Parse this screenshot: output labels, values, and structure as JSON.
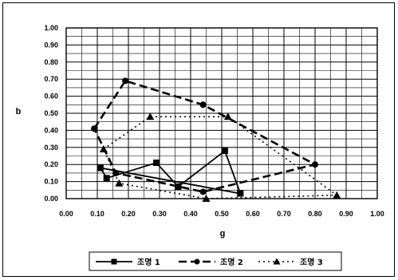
{
  "chart_data": {
    "type": "scatter",
    "title": "",
    "xlabel": "g",
    "ylabel": "b",
    "xlim": [
      0,
      1
    ],
    "ylim": [
      0,
      1
    ],
    "x_ticks": [
      "0.00",
      "0.10",
      "0.20",
      "0.30",
      "0.40",
      "0.50",
      "0.60",
      "0.70",
      "0.80",
      "0.90",
      "1.00"
    ],
    "y_ticks": [
      "0.00",
      "0.10",
      "0.20",
      "0.30",
      "0.40",
      "0.50",
      "0.60",
      "0.70",
      "0.80",
      "0.90",
      "1.00"
    ],
    "grid": true,
    "legend_position": "bottom",
    "series": [
      {
        "name": "조명 1",
        "marker": "square",
        "line_style": "solid",
        "color": "#000000",
        "x": [
          0.11,
          0.13,
          0.29,
          0.36,
          0.51,
          0.56,
          0.11
        ],
        "y": [
          0.18,
          0.12,
          0.21,
          0.07,
          0.28,
          0.03,
          0.18
        ]
      },
      {
        "name": "조명 2",
        "marker": "circle",
        "line_style": "long-dash",
        "color": "#000000",
        "x": [
          0.09,
          0.19,
          0.44,
          0.8,
          0.44,
          0.16,
          0.09
        ],
        "y": [
          0.41,
          0.69,
          0.55,
          0.2,
          0.04,
          0.15,
          0.41
        ]
      },
      {
        "name": "조명 3",
        "marker": "triangle",
        "line_style": "dotted",
        "color": "#000000",
        "x": [
          0.12,
          0.27,
          0.52,
          0.87,
          0.45,
          0.17,
          0.12
        ],
        "y": [
          0.29,
          0.48,
          0.48,
          0.02,
          0.0,
          0.09,
          0.29
        ]
      }
    ]
  }
}
